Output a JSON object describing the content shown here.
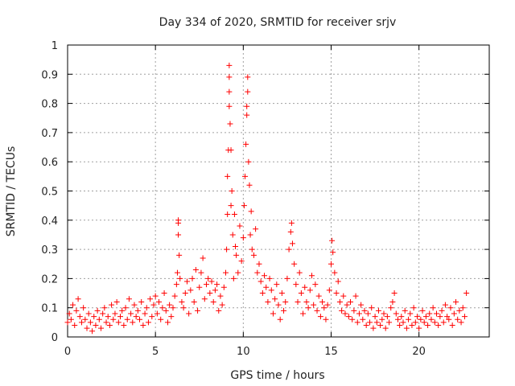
{
  "chart_data": {
    "type": "scatter",
    "title": "Day 334 of 2020, SRMTID for receiver srjv",
    "xlabel": "GPS time / hours",
    "ylabel": "SRMTID / TECUs",
    "xlim": [
      0,
      24
    ],
    "ylim": [
      0,
      1
    ],
    "xticks": [
      0,
      5,
      10,
      15,
      20
    ],
    "yticks": [
      0,
      0.1,
      0.2,
      0.3,
      0.4,
      0.5,
      0.6,
      0.7,
      0.8,
      0.9,
      1
    ],
    "x_tick_labels": [
      "0",
      "5",
      "10",
      "15",
      "20"
    ],
    "y_tick_labels": [
      "0",
      "0.1",
      "0.2",
      "0.3",
      "0.4",
      "0.5",
      "0.6",
      "0.7",
      "0.8",
      "0.9",
      "1"
    ],
    "grid": true,
    "marker": "+",
    "color": "#ff0000",
    "series": [
      {
        "name": "srjv",
        "points": [
          [
            0.0,
            0.05
          ],
          [
            0.1,
            0.08
          ],
          [
            0.2,
            0.06
          ],
          [
            0.3,
            0.11
          ],
          [
            0.4,
            0.04
          ],
          [
            0.5,
            0.09
          ],
          [
            0.6,
            0.13
          ],
          [
            0.7,
            0.07
          ],
          [
            0.8,
            0.05
          ],
          [
            0.9,
            0.1
          ],
          [
            1.0,
            0.06
          ],
          [
            1.1,
            0.03
          ],
          [
            1.2,
            0.08
          ],
          [
            1.3,
            0.05
          ],
          [
            1.4,
            0.02
          ],
          [
            1.5,
            0.07
          ],
          [
            1.6,
            0.04
          ],
          [
            1.7,
            0.09
          ],
          [
            1.8,
            0.06
          ],
          [
            1.9,
            0.03
          ],
          [
            2.0,
            0.08
          ],
          [
            2.1,
            0.1
          ],
          [
            2.2,
            0.05
          ],
          [
            2.3,
            0.07
          ],
          [
            2.4,
            0.04
          ],
          [
            2.5,
            0.11
          ],
          [
            2.6,
            0.06
          ],
          [
            2.7,
            0.08
          ],
          [
            2.8,
            0.12
          ],
          [
            2.9,
            0.05
          ],
          [
            3.0,
            0.07
          ],
          [
            3.1,
            0.09
          ],
          [
            3.2,
            0.04
          ],
          [
            3.3,
            0.1
          ],
          [
            3.4,
            0.06
          ],
          [
            3.5,
            0.13
          ],
          [
            3.6,
            0.08
          ],
          [
            3.7,
            0.05
          ],
          [
            3.8,
            0.11
          ],
          [
            3.9,
            0.07
          ],
          [
            4.0,
            0.09
          ],
          [
            4.1,
            0.06
          ],
          [
            4.2,
            0.12
          ],
          [
            4.3,
            0.04
          ],
          [
            4.4,
            0.08
          ],
          [
            4.5,
            0.1
          ],
          [
            4.6,
            0.05
          ],
          [
            4.7,
            0.13
          ],
          [
            4.8,
            0.07
          ],
          [
            4.9,
            0.11
          ],
          [
            5.0,
            0.14
          ],
          [
            5.1,
            0.08
          ],
          [
            5.2,
            0.12
          ],
          [
            5.3,
            0.06
          ],
          [
            5.4,
            0.1
          ],
          [
            5.5,
            0.15
          ],
          [
            5.6,
            0.09
          ],
          [
            5.7,
            0.05
          ],
          [
            5.8,
            0.11
          ],
          [
            5.9,
            0.07
          ],
          [
            6.0,
            0.1
          ],
          [
            6.1,
            0.14
          ],
          [
            6.2,
            0.18
          ],
          [
            6.25,
            0.22
          ],
          [
            6.3,
            0.35
          ],
          [
            6.3,
            0.4
          ],
          [
            6.3,
            0.39
          ],
          [
            6.35,
            0.28
          ],
          [
            6.4,
            0.2
          ],
          [
            6.5,
            0.12
          ],
          [
            6.6,
            0.1
          ],
          [
            6.7,
            0.15
          ],
          [
            6.8,
            0.19
          ],
          [
            6.9,
            0.08
          ],
          [
            7.0,
            0.16
          ],
          [
            7.1,
            0.2
          ],
          [
            7.2,
            0.12
          ],
          [
            7.3,
            0.23
          ],
          [
            7.4,
            0.09
          ],
          [
            7.5,
            0.17
          ],
          [
            7.6,
            0.22
          ],
          [
            7.7,
            0.27
          ],
          [
            7.8,
            0.13
          ],
          [
            7.9,
            0.18
          ],
          [
            8.0,
            0.2
          ],
          [
            8.1,
            0.15
          ],
          [
            8.2,
            0.19
          ],
          [
            8.3,
            0.12
          ],
          [
            8.4,
            0.16
          ],
          [
            8.5,
            0.18
          ],
          [
            8.6,
            0.09
          ],
          [
            8.7,
            0.14
          ],
          [
            8.8,
            0.11
          ],
          [
            8.9,
            0.17
          ],
          [
            9.0,
            0.22
          ],
          [
            9.05,
            0.3
          ],
          [
            9.1,
            0.42
          ],
          [
            9.1,
            0.55
          ],
          [
            9.15,
            0.64
          ],
          [
            9.2,
            0.79
          ],
          [
            9.2,
            0.84
          ],
          [
            9.2,
            0.89
          ],
          [
            9.2,
            0.93
          ],
          [
            9.25,
            0.73
          ],
          [
            9.3,
            0.64
          ],
          [
            9.3,
            0.45
          ],
          [
            9.35,
            0.5
          ],
          [
            9.4,
            0.35
          ],
          [
            9.45,
            0.2
          ],
          [
            9.5,
            0.42
          ],
          [
            9.55,
            0.31
          ],
          [
            9.6,
            0.28
          ],
          [
            9.7,
            0.22
          ],
          [
            9.8,
            0.38
          ],
          [
            9.9,
            0.26
          ],
          [
            10.0,
            0.34
          ],
          [
            10.05,
            0.45
          ],
          [
            10.1,
            0.55
          ],
          [
            10.15,
            0.66
          ],
          [
            10.2,
            0.76
          ],
          [
            10.2,
            0.79
          ],
          [
            10.25,
            0.84
          ],
          [
            10.25,
            0.89
          ],
          [
            10.3,
            0.6
          ],
          [
            10.35,
            0.52
          ],
          [
            10.4,
            0.35
          ],
          [
            10.45,
            0.43
          ],
          [
            10.5,
            0.3
          ],
          [
            10.6,
            0.28
          ],
          [
            10.7,
            0.37
          ],
          [
            10.8,
            0.22
          ],
          [
            10.9,
            0.25
          ],
          [
            11.0,
            0.19
          ],
          [
            11.1,
            0.15
          ],
          [
            11.2,
            0.21
          ],
          [
            11.3,
            0.17
          ],
          [
            11.4,
            0.12
          ],
          [
            11.5,
            0.2
          ],
          [
            11.6,
            0.16
          ],
          [
            11.7,
            0.08
          ],
          [
            11.8,
            0.13
          ],
          [
            11.9,
            0.18
          ],
          [
            12.0,
            0.11
          ],
          [
            12.1,
            0.06
          ],
          [
            12.2,
            0.15
          ],
          [
            12.3,
            0.09
          ],
          [
            12.4,
            0.12
          ],
          [
            12.5,
            0.2
          ],
          [
            12.6,
            0.3
          ],
          [
            12.7,
            0.36
          ],
          [
            12.75,
            0.39
          ],
          [
            12.8,
            0.32
          ],
          [
            12.9,
            0.25
          ],
          [
            13.0,
            0.18
          ],
          [
            13.1,
            0.12
          ],
          [
            13.2,
            0.22
          ],
          [
            13.3,
            0.15
          ],
          [
            13.4,
            0.08
          ],
          [
            13.5,
            0.17
          ],
          [
            13.6,
            0.12
          ],
          [
            13.7,
            0.1
          ],
          [
            13.8,
            0.16
          ],
          [
            13.9,
            0.21
          ],
          [
            14.0,
            0.11
          ],
          [
            14.1,
            0.18
          ],
          [
            14.2,
            0.09
          ],
          [
            14.3,
            0.14
          ],
          [
            14.4,
            0.07
          ],
          [
            14.5,
            0.12
          ],
          [
            14.6,
            0.1
          ],
          [
            14.7,
            0.06
          ],
          [
            14.8,
            0.11
          ],
          [
            14.9,
            0.16
          ],
          [
            15.0,
            0.25
          ],
          [
            15.05,
            0.33
          ],
          [
            15.1,
            0.29
          ],
          [
            15.2,
            0.22
          ],
          [
            15.3,
            0.15
          ],
          [
            15.4,
            0.19
          ],
          [
            15.5,
            0.12
          ],
          [
            15.6,
            0.09
          ],
          [
            15.7,
            0.14
          ],
          [
            15.8,
            0.08
          ],
          [
            15.9,
            0.11
          ],
          [
            16.0,
            0.07
          ],
          [
            16.1,
            0.12
          ],
          [
            16.2,
            0.06
          ],
          [
            16.3,
            0.09
          ],
          [
            16.4,
            0.14
          ],
          [
            16.5,
            0.05
          ],
          [
            16.6,
            0.08
          ],
          [
            16.7,
            0.11
          ],
          [
            16.8,
            0.06
          ],
          [
            16.9,
            0.09
          ],
          [
            17.0,
            0.04
          ],
          [
            17.1,
            0.08
          ],
          [
            17.2,
            0.05
          ],
          [
            17.3,
            0.1
          ],
          [
            17.4,
            0.03
          ],
          [
            17.5,
            0.07
          ],
          [
            17.6,
            0.05
          ],
          [
            17.7,
            0.09
          ],
          [
            17.8,
            0.04
          ],
          [
            17.9,
            0.06
          ],
          [
            18.0,
            0.08
          ],
          [
            18.1,
            0.03
          ],
          [
            18.2,
            0.07
          ],
          [
            18.3,
            0.05
          ],
          [
            18.4,
            0.1
          ],
          [
            18.5,
            0.12
          ],
          [
            18.6,
            0.15
          ],
          [
            18.7,
            0.08
          ],
          [
            18.8,
            0.06
          ],
          [
            18.9,
            0.04
          ],
          [
            19.0,
            0.07
          ],
          [
            19.1,
            0.05
          ],
          [
            19.2,
            0.09
          ],
          [
            19.3,
            0.03
          ],
          [
            19.4,
            0.06
          ],
          [
            19.5,
            0.08
          ],
          [
            19.6,
            0.04
          ],
          [
            19.7,
            0.1
          ],
          [
            19.8,
            0.05
          ],
          [
            19.9,
            0.07
          ],
          [
            20.0,
            0.03
          ],
          [
            20.1,
            0.06
          ],
          [
            20.2,
            0.09
          ],
          [
            20.3,
            0.05
          ],
          [
            20.4,
            0.07
          ],
          [
            20.5,
            0.04
          ],
          [
            20.6,
            0.08
          ],
          [
            20.7,
            0.06
          ],
          [
            20.8,
            0.1
          ],
          [
            20.9,
            0.05
          ],
          [
            21.0,
            0.08
          ],
          [
            21.1,
            0.04
          ],
          [
            21.2,
            0.07
          ],
          [
            21.3,
            0.09
          ],
          [
            21.4,
            0.05
          ],
          [
            21.5,
            0.11
          ],
          [
            21.6,
            0.07
          ],
          [
            21.7,
            0.06
          ],
          [
            21.8,
            0.1
          ],
          [
            21.9,
            0.04
          ],
          [
            22.0,
            0.08
          ],
          [
            22.1,
            0.12
          ],
          [
            22.2,
            0.06
          ],
          [
            22.3,
            0.09
          ],
          [
            22.4,
            0.05
          ],
          [
            22.5,
            0.1
          ],
          [
            22.6,
            0.07
          ],
          [
            22.7,
            0.15
          ]
        ]
      }
    ]
  }
}
